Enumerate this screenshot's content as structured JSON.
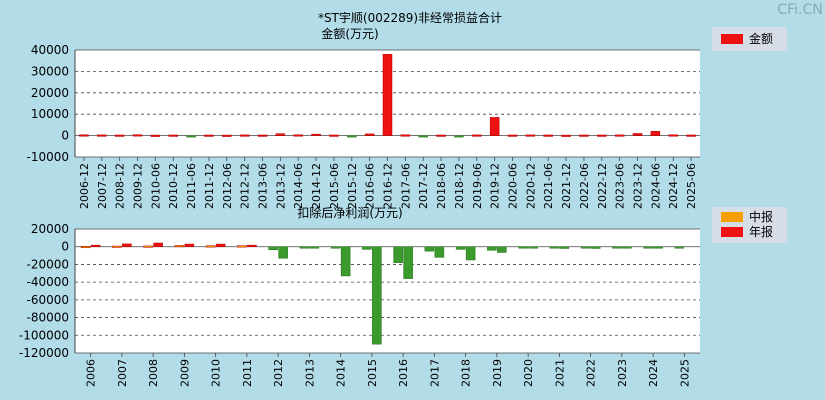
{
  "watermark": "CFi.CN",
  "legend_top": {
    "label": "金额",
    "color": "#ee1111"
  },
  "legend_bottom": [
    {
      "label": "中报",
      "color": "#f5a000"
    },
    {
      "label": "年报",
      "color": "#ee1111"
    }
  ],
  "chart_data": [
    {
      "type": "bar",
      "title": "*ST宇顺(002289)非经常损益合计",
      "subtitle": "金额(万元)",
      "ylim": [
        -10000,
        40000
      ],
      "yticks": [
        "40000",
        "30000",
        "20000",
        "10000",
        "0",
        "-10000"
      ],
      "grid": true,
      "legend": "top-right",
      "categories": [
        "2006-12",
        "2007-12",
        "2008-12",
        "2009-12",
        "2010-06",
        "2010-12",
        "2011-06",
        "2011-12",
        "2012-06",
        "2012-12",
        "2013-06",
        "2013-12",
        "2014-06",
        "2014-12",
        "2015-06",
        "2015-12",
        "2016-06",
        "2016-12",
        "2017-06",
        "2017-12",
        "2018-06",
        "2018-12",
        "2019-06",
        "2019-12",
        "2020-06",
        "2020-12",
        "2021-06",
        "2021-12",
        "2022-06",
        "2022-12",
        "2023-06",
        "2023-12",
        "2024-06",
        "2024-12",
        "2025-06"
      ],
      "series": [
        {
          "name": "金额",
          "values": [
            400,
            350,
            300,
            450,
            250,
            300,
            -200,
            300,
            250,
            350,
            300,
            900,
            400,
            700,
            300,
            -300,
            800,
            38000,
            400,
            -300,
            300,
            -400,
            350,
            8500,
            300,
            350,
            300,
            250,
            300,
            300,
            350,
            1000,
            2000,
            400,
            300
          ]
        }
      ]
    },
    {
      "type": "bar",
      "title": "扣除后净利润(万元)",
      "ylim": [
        -120000,
        20000
      ],
      "yticks": [
        "20000",
        "0",
        "-20000",
        "-40000",
        "-60000",
        "-80000",
        "-100000",
        "-120000"
      ],
      "grid": true,
      "legend": "top-right",
      "categories": [
        "2006",
        "2007",
        "2008",
        "2009",
        "2010",
        "2011",
        "2012",
        "2013",
        "2014",
        "2015",
        "2016",
        "2017",
        "2018",
        "2019",
        "2020",
        "2021",
        "2022",
        "2023",
        "2024",
        "2025"
      ],
      "series": [
        {
          "name": "中报",
          "values": [
            500,
            800,
            900,
            1500,
            1200,
            1200,
            -3500,
            -1000,
            -800,
            -3000,
            -18000,
            -5000,
            -3000,
            -4000,
            -1500,
            -1500,
            -1200,
            -1200,
            -1200,
            -1500
          ]
        },
        {
          "name": "年报",
          "values": [
            1800,
            3200,
            4200,
            3000,
            3000,
            1800,
            -13000,
            -1200,
            -33000,
            -110000,
            -36000,
            -12000,
            -15000,
            -6500,
            -1500,
            -2000,
            -2000,
            -1500,
            -1500,
            null
          ]
        }
      ]
    }
  ]
}
